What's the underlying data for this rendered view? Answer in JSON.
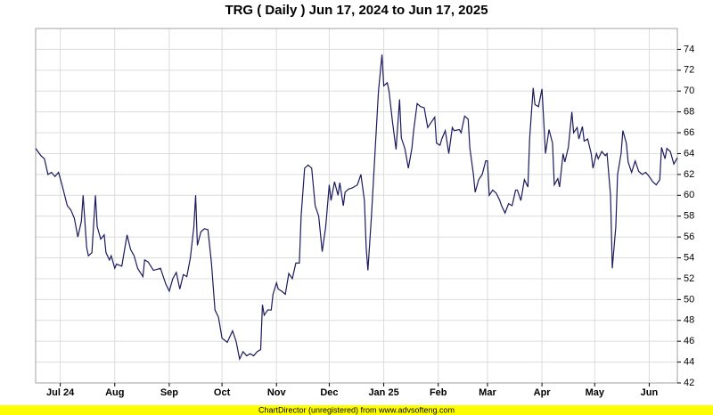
{
  "chart_data": {
    "type": "line",
    "title": "TRG ( Daily ) Jun 17, 2024 to Jun 17, 2025",
    "footer": "ChartDirector (unregistered) from www.advsofteng.com",
    "grid": true,
    "series": [
      {
        "color": "#1a1a5e",
        "x": [
          0,
          3,
          5,
          7,
          9,
          11,
          13,
          15,
          18,
          20,
          22,
          24,
          26,
          27,
          29,
          30,
          32,
          34,
          35,
          37,
          39,
          40,
          42,
          43,
          45,
          46,
          49,
          52,
          54,
          56,
          58,
          61,
          62,
          64,
          67,
          69,
          71,
          74,
          76,
          78,
          80,
          82,
          84,
          86,
          88,
          90,
          91,
          92,
          94,
          96,
          98,
          100,
          102,
          104,
          106,
          109,
          112,
          114,
          116,
          118,
          120,
          122,
          124,
          126,
          128,
          129,
          130,
          132,
          134,
          135,
          137,
          138,
          140,
          142,
          144,
          146,
          148,
          150,
          151,
          153,
          155,
          157,
          159,
          161,
          163,
          165,
          167,
          168,
          170,
          172,
          173,
          175,
          176,
          178,
          180,
          183,
          185,
          187,
          188,
          189,
          191,
          192,
          193,
          195,
          197,
          198,
          200,
          201,
          203,
          205,
          207,
          208,
          210,
          212,
          214,
          215,
          217,
          219,
          221,
          223,
          225,
          227,
          228,
          230,
          231,
          233,
          235,
          237,
          238,
          241,
          242,
          244,
          246,
          247,
          249,
          250,
          252,
          254,
          256,
          257,
          258,
          260,
          262,
          264,
          265,
          267,
          269,
          271,
          273,
          274,
          276,
          278,
          280,
          281,
          283,
          284,
          286,
          288,
          290,
          292,
          294,
          295,
          297,
          298,
          300,
          301,
          303,
          305,
          306,
          308,
          309,
          311,
          312,
          314,
          316,
          317,
          319,
          320,
          322,
          324,
          325,
          327,
          328,
          330,
          331,
          333,
          334,
          336,
          337,
          339,
          341,
          343,
          345,
          347,
          349,
          351,
          353,
          355,
          356,
          358,
          359,
          361,
          363,
          365
        ],
        "values": [
          64.5,
          63.8,
          63.5,
          62.0,
          62.2,
          61.8,
          62.2,
          61.0,
          59.0,
          58.6,
          57.8,
          56.0,
          57.5,
          60.0,
          55.0,
          54.2,
          54.5,
          60.0,
          57.0,
          55.8,
          56.2,
          54.5,
          53.8,
          54.2,
          53.0,
          53.4,
          53.2,
          56.2,
          54.8,
          54.2,
          53.0,
          52.2,
          53.8,
          53.6,
          52.8,
          52.9,
          53.0,
          51.5,
          50.8,
          52.0,
          52.6,
          51.0,
          52.4,
          52.2,
          54.0,
          57.0,
          60.0,
          55.2,
          56.5,
          56.8,
          56.7,
          53.5,
          49.0,
          48.3,
          46.3,
          45.9,
          47.0,
          46.0,
          44.3,
          45.0,
          44.6,
          44.8,
          44.6,
          45.0,
          45.2,
          49.5,
          48.5,
          49.0,
          49.0,
          50.5,
          51.6,
          51.0,
          50.8,
          50.5,
          52.5,
          52.0,
          53.5,
          53.5,
          58.0,
          62.6,
          62.9,
          62.6,
          59.0,
          58.0,
          54.6,
          57.0,
          61.0,
          59.5,
          61.3,
          60.0,
          61.2,
          59.0,
          60.3,
          60.6,
          60.7,
          61.0,
          62.0,
          59.5,
          55.0,
          52.8,
          58.0,
          61.0,
          64.0,
          70.0,
          73.5,
          70.5,
          70.8,
          70.0,
          67.0,
          64.4,
          69.2,
          65.5,
          64.5,
          62.6,
          64.5,
          66.2,
          68.8,
          68.5,
          68.4,
          66.5,
          67.0,
          67.5,
          65.0,
          64.8,
          65.4,
          66.2,
          64.0,
          66.5,
          66.2,
          66.3,
          66.0,
          67.6,
          67.3,
          64.5,
          62.0,
          60.3,
          61.5,
          62.0,
          63.3,
          63.3,
          60.0,
          60.5,
          60.2,
          59.5,
          59.0,
          58.3,
          59.2,
          59.0,
          60.5,
          60.5,
          59.5,
          61.5,
          60.8,
          65.5,
          70.3,
          68.7,
          68.5,
          70.2,
          64.0,
          66.3,
          65.0,
          61.0,
          61.6,
          60.8,
          64.0,
          63.2,
          64.6,
          68.0,
          66.0,
          66.5,
          65.4,
          66.6,
          65.2,
          65.4,
          64.0,
          62.6,
          64.0,
          63.5,
          64.2,
          63.8,
          64.0,
          60.0,
          53.0,
          57.0,
          62.0,
          64.0,
          66.2,
          65.0,
          63.2,
          62.2,
          63.3,
          62.3,
          62.0,
          62.2,
          61.8,
          61.3,
          61.0,
          61.5,
          64.6,
          63.5,
          64.5,
          64.2,
          63.0,
          63.6
        ]
      }
    ],
    "xlim": [
      0,
      365
    ],
    "xticks": [
      {
        "value": 14,
        "label": "Jul 24"
      },
      {
        "value": 45,
        "label": "Aug"
      },
      {
        "value": 76,
        "label": "Sep"
      },
      {
        "value": 106,
        "label": "Oct"
      },
      {
        "value": 137,
        "label": "Nov"
      },
      {
        "value": 167,
        "label": "Dec"
      },
      {
        "value": 198,
        "label": "Jan 25"
      },
      {
        "value": 229,
        "label": "Feb"
      },
      {
        "value": 257,
        "label": "Mar"
      },
      {
        "value": 288,
        "label": "Apr"
      },
      {
        "value": 318,
        "label": "May"
      },
      {
        "value": 349,
        "label": "Jun"
      }
    ],
    "ylim": [
      42,
      76
    ],
    "yticks": [
      42,
      44,
      46,
      48,
      50,
      52,
      54,
      56,
      58,
      60,
      62,
      64,
      66,
      68,
      70,
      72,
      74
    ]
  }
}
